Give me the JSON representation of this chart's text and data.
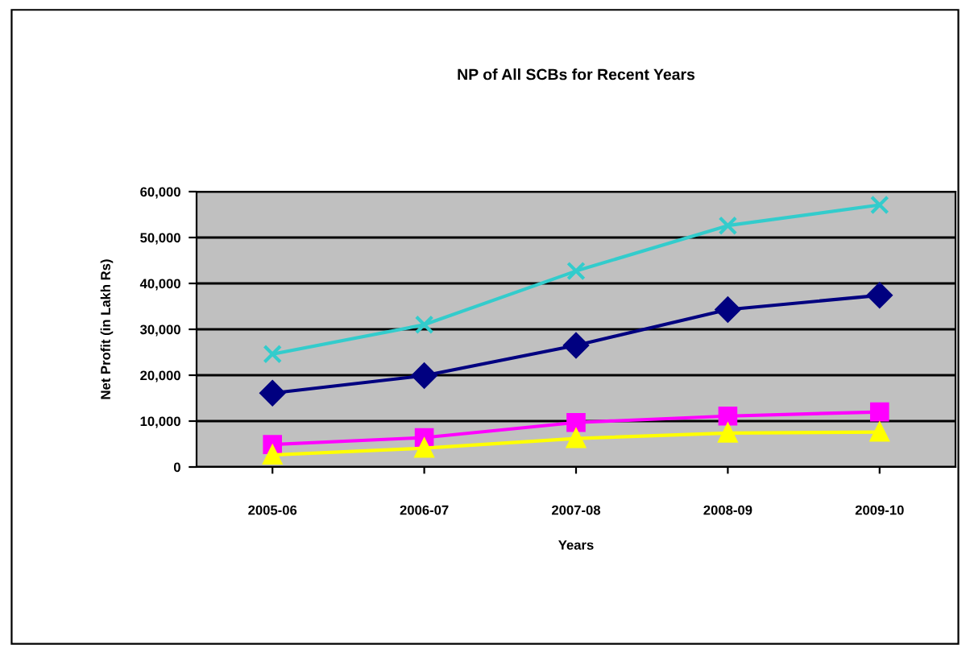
{
  "chart_data": {
    "type": "line",
    "title": "NP of All SCBs for Recent Years",
    "xlabel": "Years",
    "ylabel": "Net Profit (in Lakh Rs)",
    "categories": [
      "2005-06",
      "2006-07",
      "2007-08",
      "2008-09",
      "2009-10"
    ],
    "series": [
      {
        "color": "#000080",
        "marker": "diamond",
        "values": [
          16100,
          19900,
          26500,
          34300,
          37400
        ]
      },
      {
        "color": "#ff00ff",
        "marker": "square",
        "values": [
          4900,
          6400,
          9700,
          11100,
          12000
        ]
      },
      {
        "color": "#ffff00",
        "marker": "triangle",
        "values": [
          2600,
          4100,
          6200,
          7400,
          7600
        ]
      },
      {
        "color": "#33cccc",
        "marker": "cross",
        "values": [
          24600,
          31000,
          42700,
          52600,
          57100
        ]
      }
    ],
    "ylim": [
      0,
      60000
    ],
    "yticks": [
      0,
      {
        "value": 10000,
        "label": "10,000"
      },
      {
        "value": 20000,
        "label": "20,000"
      },
      {
        "value": 30000,
        "label": "30,000"
      },
      {
        "value": 40000,
        "label": "40,000"
      },
      {
        "value": 50000,
        "label": "50,000"
      },
      {
        "value": 60000,
        "label": "60,000"
      }
    ],
    "grid": "y",
    "legend": false
  }
}
